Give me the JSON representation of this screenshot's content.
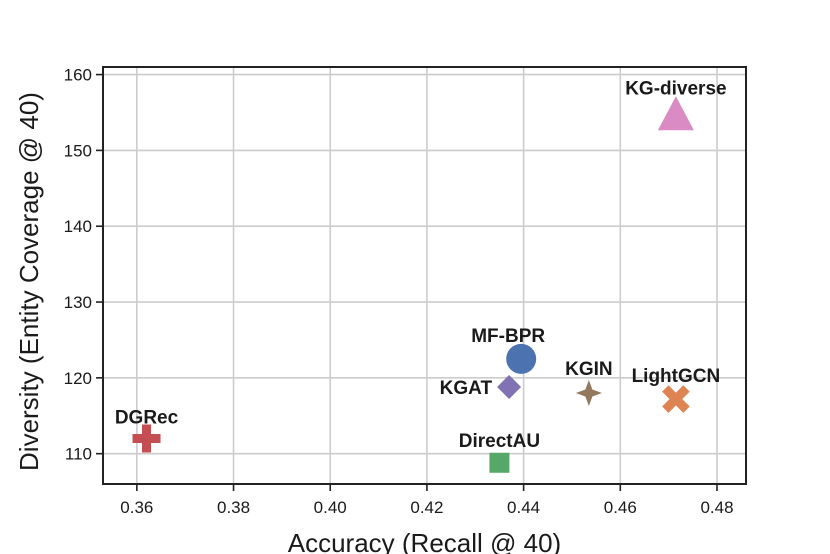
{
  "chart_data": {
    "type": "scatter",
    "title": "",
    "xlabel": "Accuracy (Recall @ 40)",
    "ylabel": "Diversity (Entity Coverage @ 40)",
    "xlim": [
      0.353,
      0.486
    ],
    "ylim": [
      106,
      161
    ],
    "xticks": [
      "0.36",
      "0.38",
      "0.40",
      "0.42",
      "0.44",
      "0.46",
      "0.48"
    ],
    "yticks": [
      "110",
      "120",
      "130",
      "140",
      "150",
      "160"
    ],
    "grid": true,
    "legend": "none",
    "points": [
      {
        "label": "KG-diverse",
        "x": 0.4715,
        "y": 154.5,
        "marker": "triangle",
        "color": "#da8bc3"
      },
      {
        "label": "MF-BPR",
        "x": 0.4395,
        "y": 122.5,
        "marker": "circle",
        "color": "#4c72b0"
      },
      {
        "label": "KGAT",
        "x": 0.437,
        "y": 118.8,
        "marker": "diamond",
        "color": "#8172b3"
      },
      {
        "label": "KGIN",
        "x": 0.4535,
        "y": 118.0,
        "marker": "star4",
        "color": "#937860"
      },
      {
        "label": "LightGCN",
        "x": 0.4715,
        "y": 117.2,
        "marker": "x",
        "color": "#dd8452"
      },
      {
        "label": "DGRec",
        "x": 0.362,
        "y": 112.0,
        "marker": "plus",
        "color": "#c44e52"
      },
      {
        "label": "DirectAU",
        "x": 0.435,
        "y": 108.8,
        "marker": "square",
        "color": "#55a868"
      }
    ]
  }
}
